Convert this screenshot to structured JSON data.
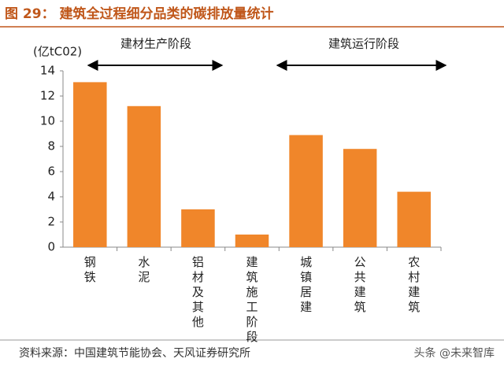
{
  "chart_data": {
    "type": "bar",
    "title": "图 29： 建筑全过程细分品类的碳排放量统计",
    "y_label": "(亿tC02)",
    "categories": [
      "钢铁",
      "水泥",
      "铝材及其他",
      "建筑施工阶段",
      "城镇居建",
      "公共建筑",
      "农村建筑"
    ],
    "values": [
      13.1,
      11.2,
      3.0,
      1.0,
      8.9,
      7.8,
      4.4
    ],
    "color": "#f0862a",
    "ylim": [
      0,
      14
    ],
    "yticks": [
      0,
      2,
      4,
      6,
      8,
      10,
      12,
      14
    ],
    "grid": false,
    "annotations": [
      "建材生产阶段",
      "建筑运行阶段"
    ],
    "source": "资料来源：中国建筑节能协会、天风证券研究所",
    "watermark": "头条 @未来智库"
  }
}
